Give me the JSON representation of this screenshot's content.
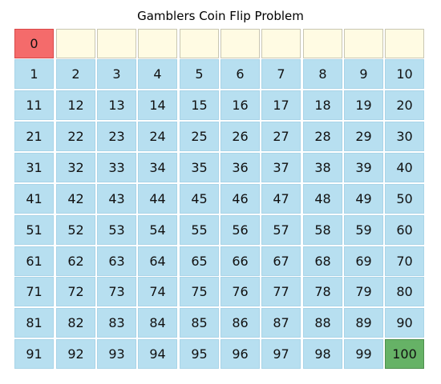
{
  "title": "Gamblers Coin Flip Problem",
  "board": {
    "columns": 10,
    "top_row": [
      "0",
      "",
      "",
      "",
      "",
      "",
      "",
      "",
      "",
      ""
    ],
    "cells": [
      "1",
      "2",
      "3",
      "4",
      "5",
      "6",
      "7",
      "8",
      "9",
      "10",
      "11",
      "12",
      "13",
      "14",
      "15",
      "16",
      "17",
      "18",
      "19",
      "20",
      "21",
      "22",
      "23",
      "24",
      "25",
      "26",
      "27",
      "28",
      "29",
      "30",
      "31",
      "32",
      "33",
      "34",
      "35",
      "36",
      "37",
      "38",
      "39",
      "40",
      "41",
      "42",
      "43",
      "44",
      "45",
      "46",
      "47",
      "48",
      "49",
      "50",
      "51",
      "52",
      "53",
      "54",
      "55",
      "56",
      "57",
      "58",
      "59",
      "60",
      "61",
      "62",
      "63",
      "64",
      "65",
      "66",
      "67",
      "68",
      "69",
      "70",
      "71",
      "72",
      "73",
      "74",
      "75",
      "76",
      "77",
      "78",
      "79",
      "80",
      "81",
      "82",
      "83",
      "84",
      "85",
      "86",
      "87",
      "88",
      "89",
      "90",
      "91",
      "92",
      "93",
      "94",
      "95",
      "96",
      "97",
      "98",
      "99",
      "100"
    ],
    "start_value": "0",
    "goal_value": "100"
  },
  "colors": {
    "cell": "#b7dff0",
    "empty_slot": "#fffbe3",
    "start": "#f46b6b",
    "goal": "#66b266"
  }
}
